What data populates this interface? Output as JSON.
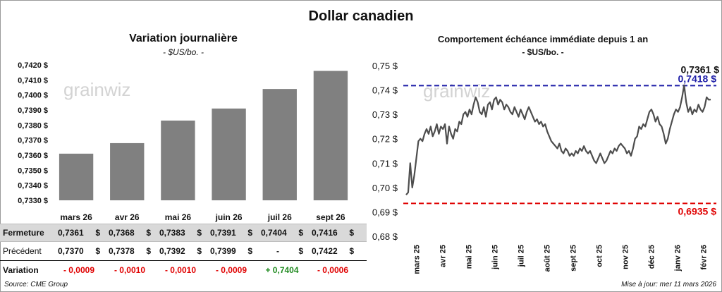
{
  "title": "Dollar canadien",
  "left_chart": {
    "title": "Variation  journalière",
    "subtitle": "- $US/bo. -",
    "watermark": "grainwiz",
    "chart_data": {
      "type": "bar",
      "categories": [
        "mars 26",
        "avr 26",
        "mai 26",
        "juin 26",
        "juil 26",
        "sept 26"
      ],
      "values": [
        0.7361,
        0.7368,
        0.7383,
        0.7391,
        0.7404,
        0.7416
      ],
      "ylim": [
        0.733,
        0.742
      ],
      "yticks": [
        "0,7330 $",
        "0,7340 $",
        "0,7350 $",
        "0,7360 $",
        "0,7370 $",
        "0,7380 $",
        "0,7390 $",
        "0,7400 $",
        "0,7410 $",
        "0,7420 $"
      ],
      "bar_color": "#808080"
    }
  },
  "table": {
    "rows": [
      {
        "label": "Fermeture",
        "cells": [
          [
            "0,7361",
            "$"
          ],
          [
            "0,7368",
            "$"
          ],
          [
            "0,7383",
            "$"
          ],
          [
            "0,7391",
            "$"
          ],
          [
            "0,7404",
            "$"
          ],
          [
            "0,7416",
            "$"
          ]
        ]
      },
      {
        "label": "Précédent",
        "cells": [
          [
            "0,7370",
            "$"
          ],
          [
            "0,7378",
            "$"
          ],
          [
            "0,7392",
            "$"
          ],
          [
            "0,7399",
            "$"
          ],
          [
            "-",
            "$"
          ],
          [
            "0,7422",
            "$"
          ]
        ]
      }
    ],
    "variation": {
      "label": "Variation",
      "values": [
        "- 0,0009",
        "- 0,0010",
        "- 0,0010",
        "- 0,0009",
        "+ 0,7404",
        "- 0,0006"
      ],
      "negative_color": "#e00000",
      "positive_color": "#1f8a1f"
    }
  },
  "right_chart": {
    "title": "Comportement échéance immédiate depuis 1 an",
    "subtitle": "- $US/bo. -",
    "watermark": "grainwiz",
    "chart_data": {
      "type": "line",
      "ylim": [
        0.68,
        0.75
      ],
      "yticks": [
        "0,68 $",
        "0,69 $",
        "0,70 $",
        "0,71 $",
        "0,72 $",
        "0,73 $",
        "0,74 $",
        "0,75 $"
      ],
      "ytick_values": [
        0.68,
        0.69,
        0.7,
        0.71,
        0.72,
        0.73,
        0.74,
        0.75
      ],
      "xticks": [
        "mars 25",
        "avr 25",
        "mai 25",
        "juin 25",
        "juil 25",
        "août 25",
        "sept 25",
        "oct 25",
        "nov 25",
        "déc 25",
        "janv 26",
        "févr 26"
      ],
      "series": [
        {
          "color": "#4d4d4d",
          "values": [
            0.697,
            0.698,
            0.71,
            0.7,
            0.705,
            0.712,
            0.719,
            0.72,
            0.719,
            0.722,
            0.724,
            0.722,
            0.725,
            0.721,
            0.723,
            0.726,
            0.722,
            0.725,
            0.724,
            0.726,
            0.718,
            0.725,
            0.722,
            0.72,
            0.724,
            0.723,
            0.727,
            0.726,
            0.73,
            0.731,
            0.729,
            0.732,
            0.73,
            0.734,
            0.737,
            0.735,
            0.731,
            0.73,
            0.733,
            0.729,
            0.734,
            0.735,
            0.732,
            0.736,
            0.737,
            0.734,
            0.736,
            0.735,
            0.732,
            0.734,
            0.733,
            0.731,
            0.73,
            0.733,
            0.731,
            0.729,
            0.732,
            0.73,
            0.728,
            0.731,
            0.733,
            0.731,
            0.729,
            0.727,
            0.728,
            0.726,
            0.727,
            0.725,
            0.726,
            0.723,
            0.721,
            0.719,
            0.718,
            0.717,
            0.716,
            0.718,
            0.715,
            0.714,
            0.716,
            0.715,
            0.713,
            0.714,
            0.713,
            0.715,
            0.714,
            0.716,
            0.715,
            0.717,
            0.715,
            0.714,
            0.715,
            0.713,
            0.711,
            0.71,
            0.712,
            0.714,
            0.712,
            0.71,
            0.711,
            0.713,
            0.715,
            0.714,
            0.716,
            0.715,
            0.717,
            0.718,
            0.717,
            0.716,
            0.714,
            0.715,
            0.713,
            0.716,
            0.72,
            0.721,
            0.725,
            0.724,
            0.726,
            0.725,
            0.728,
            0.731,
            0.732,
            0.73,
            0.727,
            0.729,
            0.726,
            0.725,
            0.722,
            0.718,
            0.72,
            0.724,
            0.727,
            0.73,
            0.732,
            0.731,
            0.733,
            0.737,
            0.742,
            0.735,
            0.731,
            0.733,
            0.73,
            0.732,
            0.731,
            0.734,
            0.732,
            0.731,
            0.733,
            0.737,
            0.736,
            0.7361
          ]
        }
      ],
      "reference_lines": [
        {
          "value": 0.7418,
          "label": "0,7418 $",
          "color": "#1f1fa8",
          "style": "dashed"
        },
        {
          "value": 0.6935,
          "label": "0,6935 $",
          "color": "#e00000",
          "style": "dashed"
        }
      ],
      "last_value": {
        "value": 0.7361,
        "label": "0,7361 $"
      }
    }
  },
  "footer": {
    "source": "Source: CME Group",
    "update": "Mise à jour: mer 11 mars 2026"
  }
}
